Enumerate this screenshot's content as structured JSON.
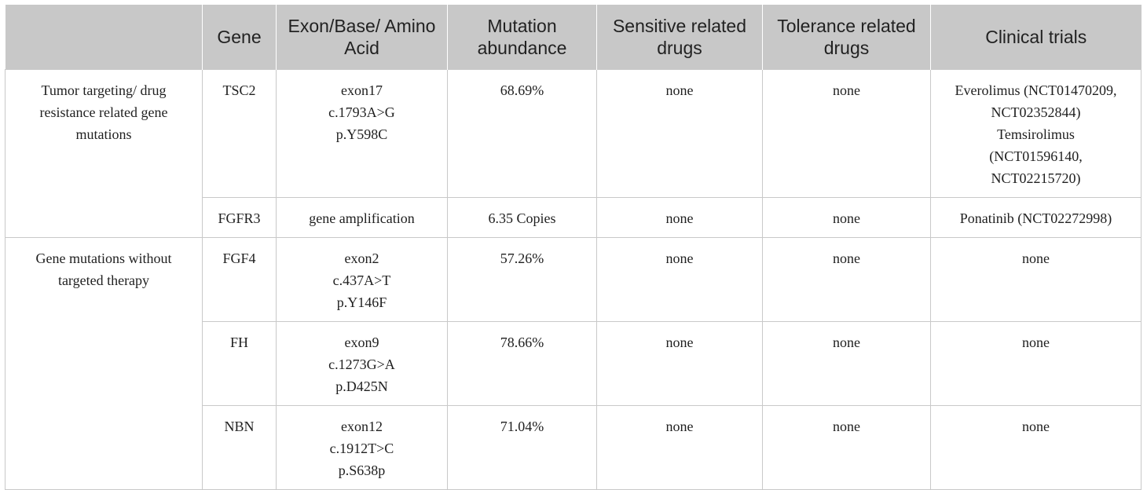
{
  "header": [
    "",
    "Gene",
    "Exon/Base/ Amino Acid",
    "Mutation abundance",
    "Sensitive related drugs",
    "Tolerance related drugs",
    "Clinical trials"
  ],
  "groups": [
    {
      "label": "Tumor targeting/ drug resistance related gene mutations"
    },
    {
      "label": "Gene mutations without targeted therapy"
    }
  ],
  "rows": [
    {
      "gene": "TSC2",
      "variant": [
        "exon17",
        "c.1793A>G",
        "p.Y598C"
      ],
      "abundance": "68.69%",
      "sensitive": "none",
      "tolerance": "none",
      "trials": [
        "Everolimus (NCT01470209,",
        "NCT02352844)",
        "Temsirolimus",
        "(NCT01596140,",
        "NCT02215720)"
      ]
    },
    {
      "gene": "FGFR3",
      "variant": [
        "gene amplification"
      ],
      "abundance": "6.35 Copies",
      "sensitive": "none",
      "tolerance": "none",
      "trials": [
        "Ponatinib (NCT02272998)"
      ]
    },
    {
      "gene": "FGF4",
      "variant": [
        "exon2",
        "c.437A>T",
        "p.Y146F"
      ],
      "abundance": "57.26%",
      "sensitive": "none",
      "tolerance": "none",
      "trials": [
        "none"
      ]
    },
    {
      "gene": "FH",
      "variant": [
        "exon9",
        "c.1273G>A",
        "p.D425N"
      ],
      "abundance": "78.66%",
      "sensitive": "none",
      "tolerance": "none",
      "trials": [
        "none"
      ]
    },
    {
      "gene": "NBN",
      "variant": [
        "exon12",
        "c.1912T>C",
        "p.S638p"
      ],
      "abundance": "71.04%",
      "sensitive": "none",
      "tolerance": "none",
      "trials": [
        "none"
      ]
    }
  ]
}
